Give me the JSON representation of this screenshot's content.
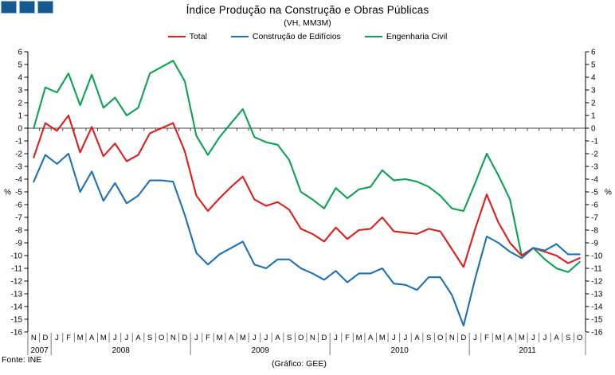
{
  "header": {
    "title": "Índice Produção na Construção e Obras Públicas",
    "subtitle": "(VH, MM3M)"
  },
  "legend": {
    "items": [
      {
        "label": "Total",
        "color": "#DB1F1F"
      },
      {
        "label": "Construção de Edifícios",
        "color": "#2070B4"
      },
      {
        "label": "Engenharia Civil",
        "color": "#0FA153"
      }
    ]
  },
  "footer": {
    "source": "Fonte: INE",
    "credit": "(Gráfico: GEE)"
  },
  "logo": {
    "squares": 3,
    "fill": "#15598F",
    "border": "#8CB3D1"
  },
  "chart_data": {
    "type": "line",
    "unit": "%",
    "ylim": [
      -16,
      6
    ],
    "y_tick_step": 1,
    "grid": "zero-line-only",
    "legend_position": "top",
    "axis_sides": [
      "left",
      "right"
    ],
    "month_labels": [
      "N",
      "D",
      "J",
      "F",
      "M",
      "A",
      "M",
      "J",
      "J",
      "A",
      "S",
      "O",
      "N",
      "D",
      "J",
      "F",
      "M",
      "A",
      "M",
      "J",
      "J",
      "A",
      "S",
      "O",
      "N",
      "D",
      "J",
      "F",
      "M",
      "A",
      "M",
      "J",
      "J",
      "A",
      "S",
      "O",
      "N",
      "D",
      "J",
      "F",
      "M",
      "A",
      "M",
      "J",
      "J",
      "A",
      "S",
      "O"
    ],
    "year_groups": [
      {
        "label": "2007",
        "months": 2
      },
      {
        "label": "2008",
        "months": 12
      },
      {
        "label": "2009",
        "months": 12
      },
      {
        "label": "2010",
        "months": 12
      },
      {
        "label": "2011",
        "months": 10
      }
    ],
    "series": [
      {
        "name": "Total",
        "slug": "total",
        "color": "#DB1F1F",
        "values": [
          -2.3,
          0.4,
          -0.2,
          1.0,
          -1.9,
          0.1,
          -2.2,
          -1.2,
          -2.6,
          -2.1,
          -0.4,
          0.0,
          0.4,
          -1.8,
          -5.3,
          -6.5,
          -5.5,
          -4.6,
          -3.8,
          -5.6,
          -6.1,
          -5.8,
          -6.4,
          -7.9,
          -8.3,
          -8.9,
          -7.8,
          -8.7,
          -8.0,
          -7.9,
          -7.0,
          -8.1,
          -8.2,
          -8.3,
          -7.9,
          -8.1,
          -9.5,
          -10.9,
          -7.9,
          -5.2,
          -7.4,
          -9.0,
          -10.0,
          -9.4,
          -9.7,
          -10.0,
          -10.6,
          -10.2
        ]
      },
      {
        "name": "Construção de Edifícios",
        "slug": "construcao-de-edificios",
        "color": "#2070B4",
        "values": [
          -4.2,
          -2.1,
          -2.8,
          -2.0,
          -5.0,
          -3.4,
          -5.7,
          -4.3,
          -5.9,
          -5.3,
          -4.1,
          -4.1,
          -4.2,
          -6.8,
          -9.8,
          -10.7,
          -9.9,
          -9.4,
          -8.9,
          -10.7,
          -11.0,
          -10.3,
          -10.3,
          -11.0,
          -11.4,
          -11.9,
          -11.2,
          -12.1,
          -11.4,
          -11.4,
          -11.0,
          -12.2,
          -12.3,
          -12.7,
          -11.7,
          -11.7,
          -13.1,
          -15.5,
          -11.8,
          -8.5,
          -9.0,
          -9.7,
          -10.2,
          -9.4,
          -9.6,
          -9.1,
          -9.9,
          -9.9
        ]
      },
      {
        "name": "Engenharia Civil",
        "slug": "engenharia-civil",
        "color": "#0FA153",
        "values": [
          0.0,
          3.2,
          2.8,
          4.3,
          1.8,
          4.2,
          1.6,
          2.4,
          1.0,
          1.6,
          4.3,
          4.8,
          5.3,
          3.7,
          -0.6,
          -2.1,
          -0.7,
          0.4,
          1.5,
          -0.7,
          -1.1,
          -1.3,
          -2.5,
          -5.0,
          -5.6,
          -6.3,
          -4.7,
          -5.5,
          -4.8,
          -4.6,
          -3.3,
          -4.1,
          -4.0,
          -4.2,
          -4.6,
          -5.3,
          -6.3,
          -6.5,
          -4.3,
          -2.0,
          -3.7,
          -5.6,
          -10.0,
          -9.4,
          -10.3,
          -11.0,
          -11.3,
          -10.5
        ]
      }
    ]
  }
}
